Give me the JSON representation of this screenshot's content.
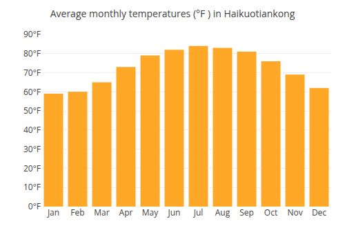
{
  "chart_data": {
    "type": "bar",
    "title": "Average monthly temperatures (°F ) in Haikuotiankong",
    "categories": [
      "Jan",
      "Feb",
      "Mar",
      "Apr",
      "May",
      "Jun",
      "Jul",
      "Aug",
      "Sep",
      "Oct",
      "Nov",
      "Dec"
    ],
    "values": [
      59,
      60,
      65,
      73,
      79,
      82,
      84,
      83,
      81,
      76,
      69,
      62
    ],
    "color": "#FFA726",
    "ylim": [
      0,
      90
    ],
    "yticks": [
      {
        "value": 0,
        "label": "0°F"
      },
      {
        "value": 10,
        "label": "10°F"
      },
      {
        "value": 20,
        "label": "20°F"
      },
      {
        "value": 30,
        "label": "30°F"
      },
      {
        "value": 40,
        "label": "40°F"
      },
      {
        "value": 50,
        "label": "50°F"
      },
      {
        "value": 60,
        "label": "60°F"
      },
      {
        "value": 70,
        "label": "70°F"
      },
      {
        "value": 80,
        "label": "80°F"
      },
      {
        "value": 90,
        "label": "90°F"
      }
    ],
    "grid": true
  }
}
